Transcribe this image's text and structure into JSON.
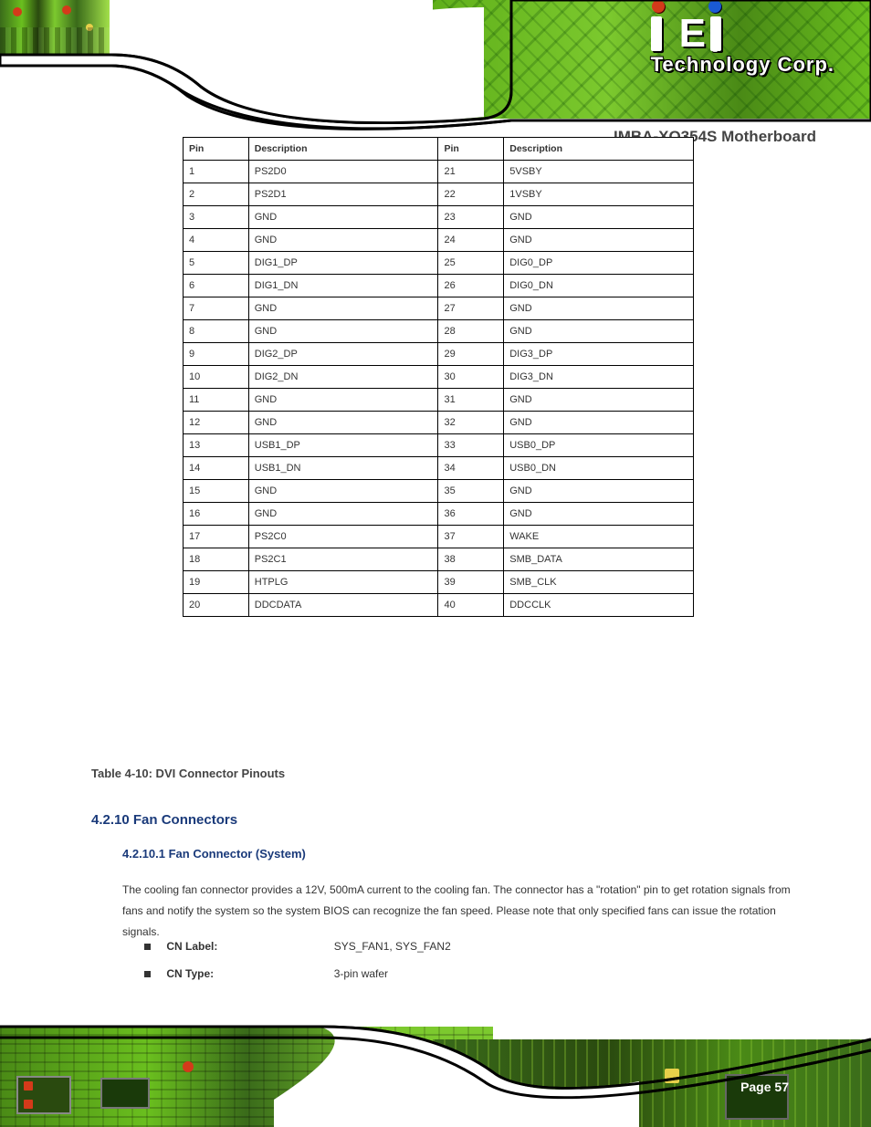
{
  "brand": {
    "logo_text": "iEi",
    "tagline": "Technology Corp.",
    "registered": "®"
  },
  "product_title": "IMBA-XQ354S Motherboard",
  "table": {
    "headers": [
      "Pin",
      "Description",
      "Pin",
      "Description"
    ],
    "rows": [
      [
        "1",
        "PS2D0",
        "21",
        "5VSBY"
      ],
      [
        "2",
        "PS2D1",
        "22",
        "1VSBY"
      ],
      [
        "3",
        "GND",
        "23",
        "GND"
      ],
      [
        "4",
        "GND",
        "24",
        "GND"
      ],
      [
        "5",
        "DIG1_DP",
        "25",
        "DIG0_DP"
      ],
      [
        "6",
        "DIG1_DN",
        "26",
        "DIG0_DN"
      ],
      [
        "7",
        "GND",
        "27",
        "GND"
      ],
      [
        "8",
        "GND",
        "28",
        "GND"
      ],
      [
        "9",
        "DIG2_DP",
        "29",
        "DIG3_DP"
      ],
      [
        "10",
        "DIG2_DN",
        "30",
        "DIG3_DN"
      ],
      [
        "11",
        "GND",
        "31",
        "GND"
      ],
      [
        "12",
        "GND",
        "32",
        "GND"
      ],
      [
        "13",
        "USB1_DP",
        "33",
        "USB0_DP"
      ],
      [
        "14",
        "USB1_DN",
        "34",
        "USB0_DN"
      ],
      [
        "15",
        "GND",
        "35",
        "GND"
      ],
      [
        "16",
        "GND",
        "36",
        "GND"
      ],
      [
        "17",
        "PS2C0",
        "37",
        "WAKE"
      ],
      [
        "18",
        "PS2C1",
        "38",
        "SMB_DATA"
      ],
      [
        "19",
        "HTPLG",
        "39",
        "SMB_CLK"
      ],
      [
        "20",
        "DDCDATA",
        "40",
        "DDCCLK"
      ]
    ]
  },
  "table_caption_label": "Table 4-10: DVI Connector Pinouts",
  "section_heading": "4.2.10 Fan Connectors",
  "section_sub": "4.2.10.1 Fan Connector (System)",
  "body_line": "The cooling fan connector provides a 12V, 500mA current to the cooling fan. The connector has a \"rotation\" pin to get rotation signals from fans and notify the system so the system BIOS can recognize the fan speed. Please note that only specified fans can issue the rotation signals.",
  "bullets": [
    {
      "label": "CN Label:",
      "value": "SYS_FAN1, SYS_FAN2"
    },
    {
      "label": "CN Type:",
      "value": "3-pin wafer"
    }
  ],
  "page_label": "Page 57",
  "colors": {
    "heading_blue": "#1a3a7a",
    "body_gray": "#333333",
    "pcb_green_light": "#7cc92e",
    "pcb_green_dark": "#3a6b1a"
  }
}
